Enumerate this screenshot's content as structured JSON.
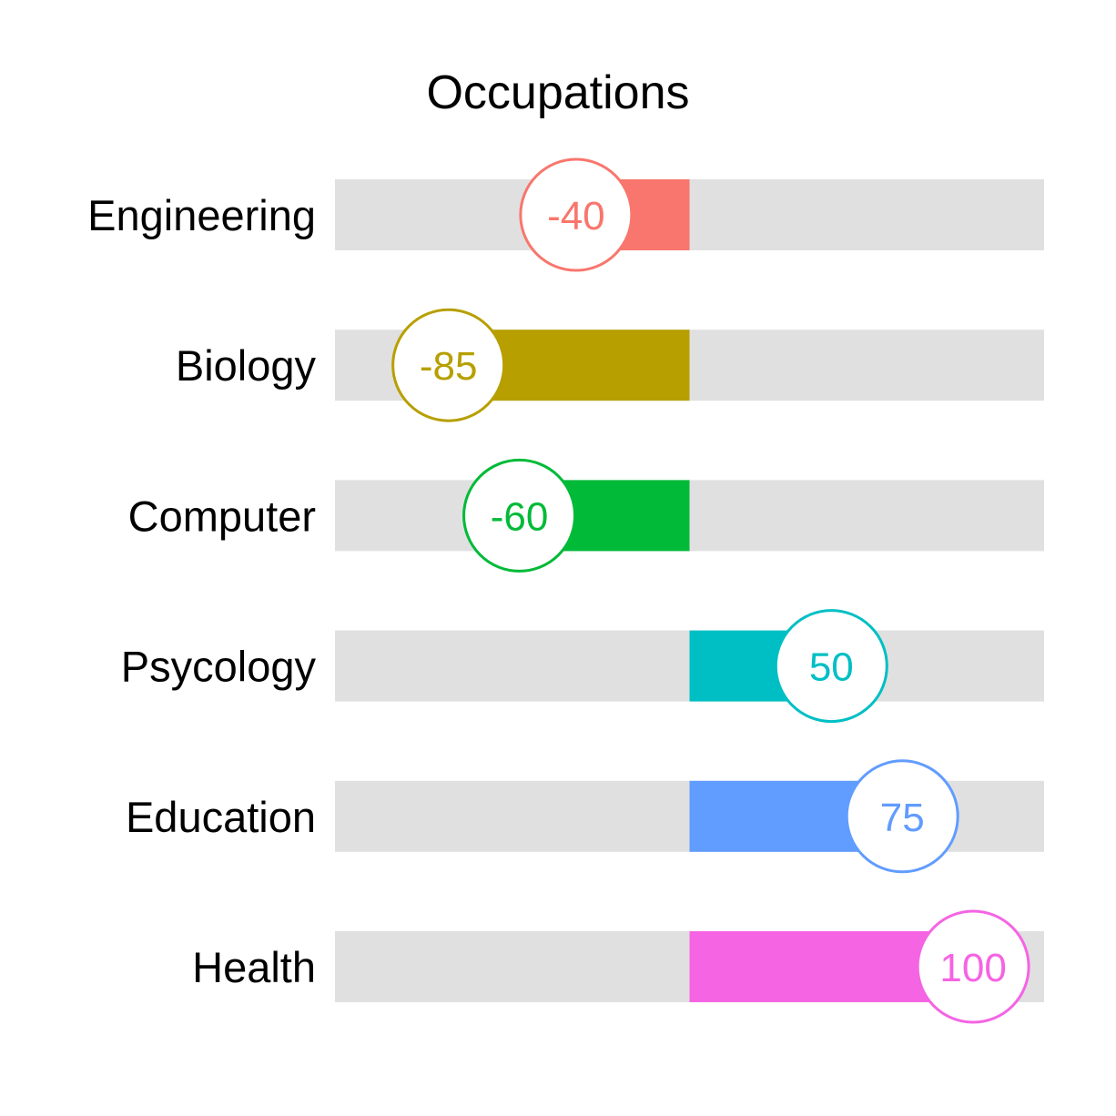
{
  "chart_data": {
    "type": "bar",
    "title": "Occupations",
    "orientation": "horizontal",
    "categories": [
      "Engineering",
      "Biology",
      "Computer",
      "Psycology",
      "Education",
      "Health"
    ],
    "values": [
      -40,
      -85,
      -60,
      50,
      75,
      100
    ],
    "value_labels": [
      "-40",
      "-85",
      "-60",
      "50",
      "75",
      "100"
    ],
    "colors": [
      "#F8766D",
      "#B79F00",
      "#00BA38",
      "#00BFC4",
      "#619CFF",
      "#F564E3"
    ],
    "xlim": [
      -100,
      100
    ],
    "track_color": "#E0E0E0",
    "xlabel": "",
    "ylabel": "",
    "grid": false,
    "legend": "none"
  }
}
